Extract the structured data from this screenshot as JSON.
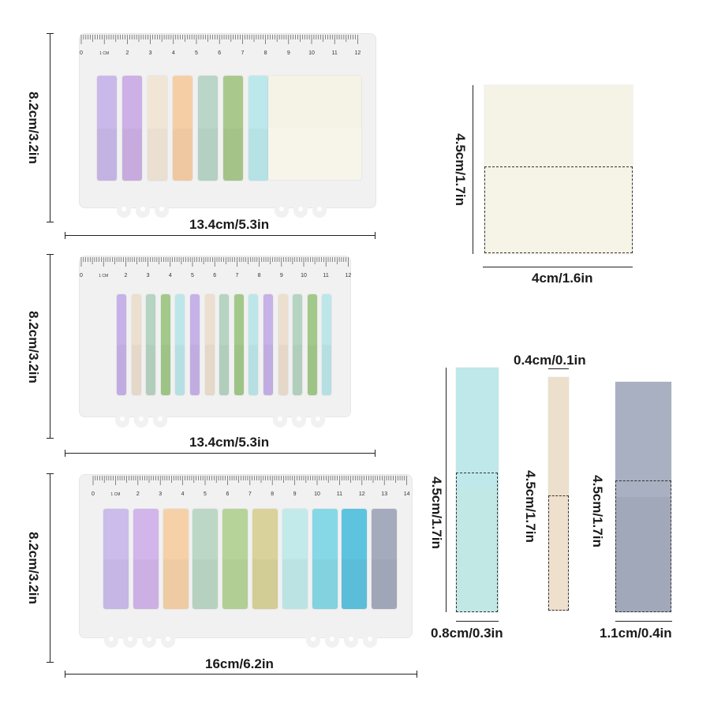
{
  "dimensions": {
    "set1_height": "8.2cm/3.2in",
    "set1_width": "13.4cm/5.3in",
    "set2_height": "8.2cm/3.2in",
    "set2_width": "13.4cm/5.3in",
    "set3_height": "8.2cm/3.2in",
    "set3_width": "16cm/6.2in",
    "square_height": "4.5cm/1.7in",
    "square_width": "4cm/1.6in",
    "strip_a_height": "4.5cm/1.7in",
    "strip_a_width": "0.8cm/0.3in",
    "strip_b_height": "4.5cm/1.7in",
    "strip_b_width": "0.4cm/0.1in",
    "strip_c_height": "4.5cm/1.7in",
    "strip_c_width": "1.1cm/0.4in"
  },
  "rulers": {
    "set1": [
      "0",
      "1 CM",
      "2",
      "3",
      "4",
      "5",
      "6",
      "7",
      "8",
      "9",
      "10",
      "11",
      "12"
    ],
    "set2": [
      "0",
      "1 CM",
      "2",
      "3",
      "4",
      "5",
      "6",
      "7",
      "8",
      "9",
      "10",
      "11",
      "12"
    ],
    "set3": [
      "0",
      "1 CM",
      "2",
      "3",
      "4",
      "5",
      "6",
      "7",
      "8",
      "9",
      "10",
      "11",
      "12",
      "13",
      "14"
    ]
  },
  "colors": {
    "set1": [
      "#c9b9ea",
      "#cdb0e6",
      "#f1e6d6",
      "#f6cea6",
      "#b9d6c8",
      "#a9c98c",
      "#bce8ec"
    ],
    "set1_square": "#f5f2e6",
    "set2": [
      "#c6b1e8",
      "#ecdfcf",
      "#b6d4c2",
      "#a3c98a",
      "#bce6ea",
      "#c6b1e8",
      "#ecdfcf",
      "#b6d4c2",
      "#a3c98a",
      "#bce6ea",
      "#c6b1e8",
      "#ecdfcf",
      "#b6d4c2",
      "#a3c98a",
      "#bce6ea"
    ],
    "set3": [
      "#cbbcec",
      "#d2b5ea",
      "#f6d1a8",
      "#bcd7c6",
      "#b6d49a",
      "#d9d29a",
      "#c2eaea",
      "#86d8e6",
      "#5ec3df",
      "#a4abbd"
    ],
    "square_note": "#f5f2e6",
    "strip_a": "#bfe8ea",
    "strip_b": "#ecdfcc",
    "strip_c": "#a6adbf"
  }
}
